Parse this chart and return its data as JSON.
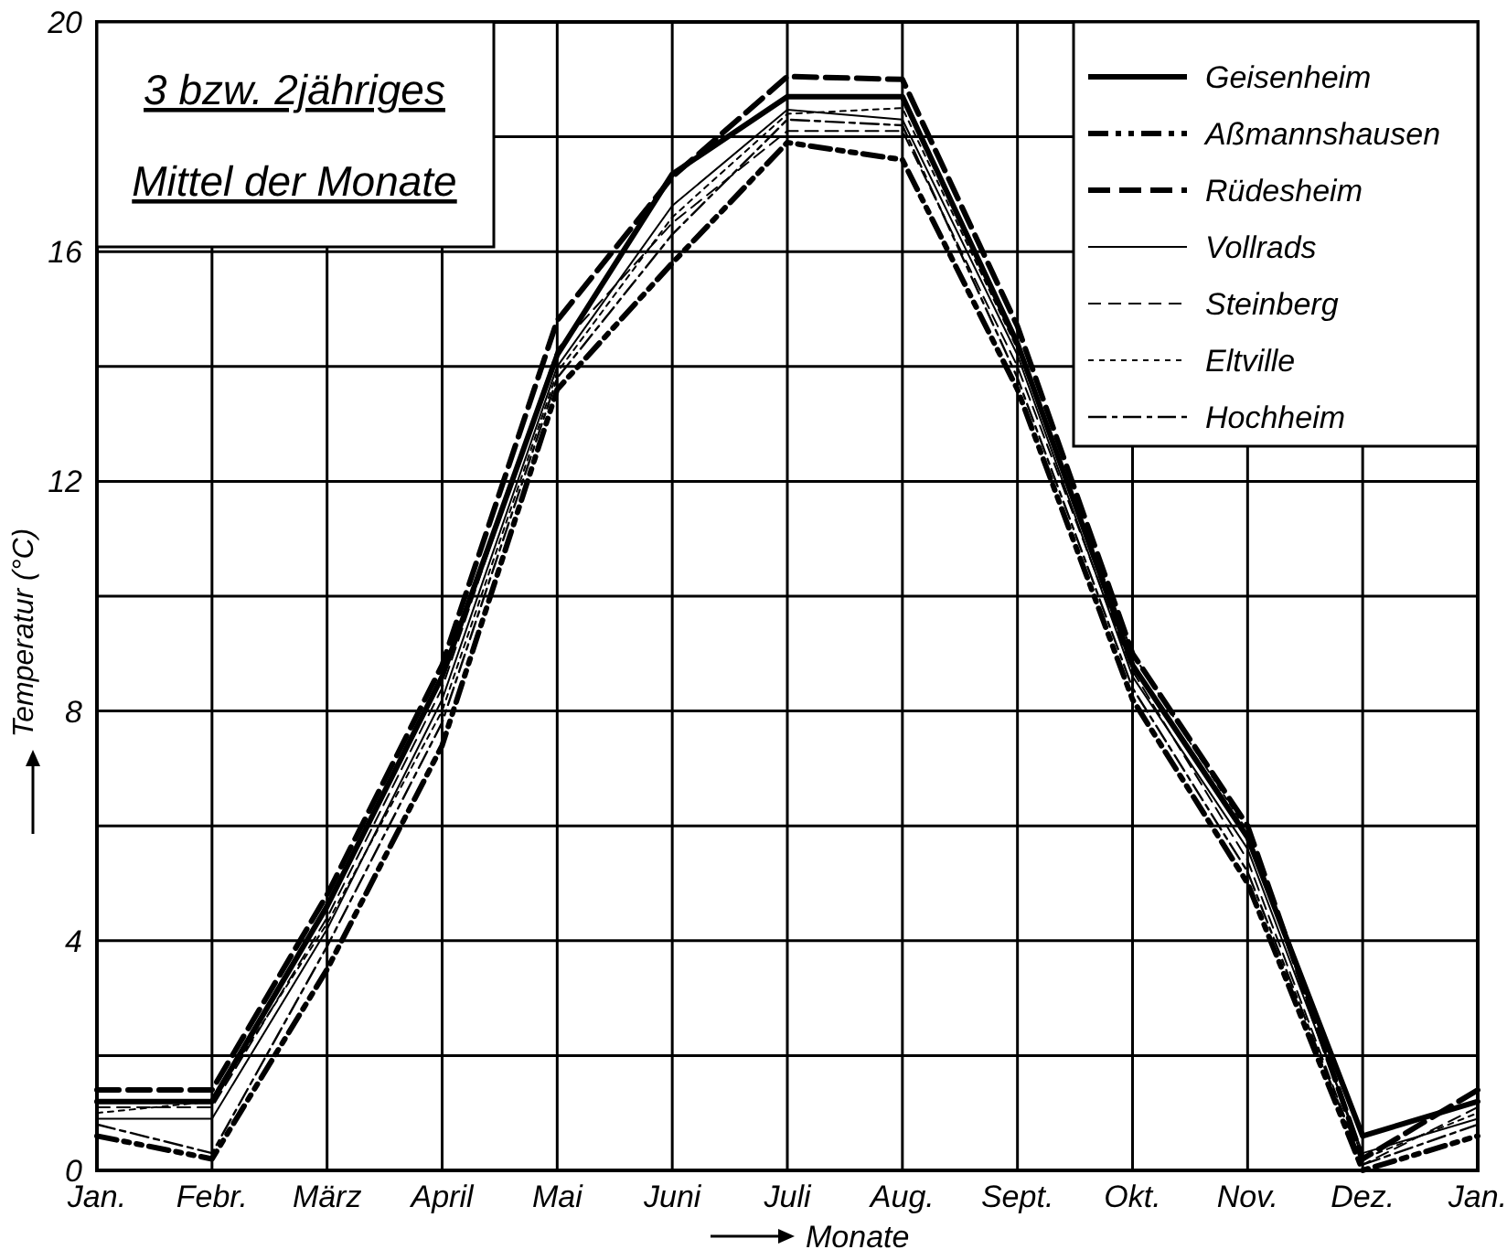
{
  "chart_data": {
    "type": "line",
    "title": "3 bzw. 2jähriges",
    "subtitle": "Mittel der Monate",
    "xlabel": "Monate",
    "ylabel": "Temperatur (°C)",
    "categories": [
      "Jan.",
      "Febr.",
      "März",
      "April",
      "Mai",
      "Juni",
      "Juli",
      "Aug.",
      "Sept.",
      "Okt.",
      "Nov.",
      "Dez.",
      "Jan."
    ],
    "ylim": [
      0,
      20
    ],
    "yticks": [
      0,
      {
        "value": 2,
        "label": null
      },
      4,
      {
        "value": 6,
        "label": null
      },
      8,
      {
        "value": 10,
        "label": null
      },
      12,
      {
        "value": 14,
        "label": null
      },
      16,
      {
        "value": 18,
        "label": null
      },
      20
    ],
    "grid": true,
    "legend": "top right",
    "series": [
      {
        "name": "Geisenheim",
        "color": "#000000",
        "line_style": "solid",
        "values": [
          1.2,
          1.2,
          4.6,
          8.6,
          14.2,
          17.35,
          18.7,
          18.7,
          14.4,
          8.8,
          5.8,
          0.6,
          1.2
        ]
      },
      {
        "name": "Aßmannshausen",
        "color": "#000000",
        "line_style": "dashed",
        "values": [
          0.6,
          0.2,
          3.5,
          7.4,
          13.6,
          15.8,
          17.9,
          17.6,
          13.6,
          8.2,
          5.0,
          0.0,
          0.6
        ]
      },
      {
        "name": "Rüdesheim",
        "color": "#000000",
        "line_style": "dashed",
        "values": [
          1.4,
          1.4,
          4.8,
          8.8,
          14.8,
          17.3,
          19.05,
          19.0,
          14.7,
          9.0,
          6.0,
          0.2,
          1.4
        ]
      },
      {
        "name": "Vollrads",
        "color": "#000000",
        "line_style": "solid",
        "values": [
          0.9,
          0.9,
          4.2,
          8.2,
          14.0,
          16.8,
          18.47,
          18.3,
          14.2,
          8.6,
          5.6,
          0.3,
          0.9
        ]
      },
      {
        "name": "Steinberg",
        "color": "#000000",
        "line_style": "dashed",
        "values": [
          1.1,
          1.1,
          4.4,
          8.4,
          14.3,
          16.5,
          18.1,
          18.1,
          14.0,
          8.7,
          5.4,
          0.1,
          1.1
        ]
      },
      {
        "name": "Eltville",
        "color": "#000000",
        "line_style": "dotted",
        "values": [
          1.0,
          1.2,
          4.3,
          8.0,
          13.9,
          16.6,
          18.4,
          18.5,
          14.3,
          9.0,
          5.9,
          0.2,
          1.0
        ]
      },
      {
        "name": "Hochheim",
        "color": "#000000",
        "line_style": "dashed",
        "values": [
          0.8,
          0.3,
          3.9,
          7.8,
          13.8,
          16.3,
          18.3,
          18.2,
          13.8,
          8.4,
          5.2,
          0.1,
          0.8
        ]
      }
    ]
  }
}
